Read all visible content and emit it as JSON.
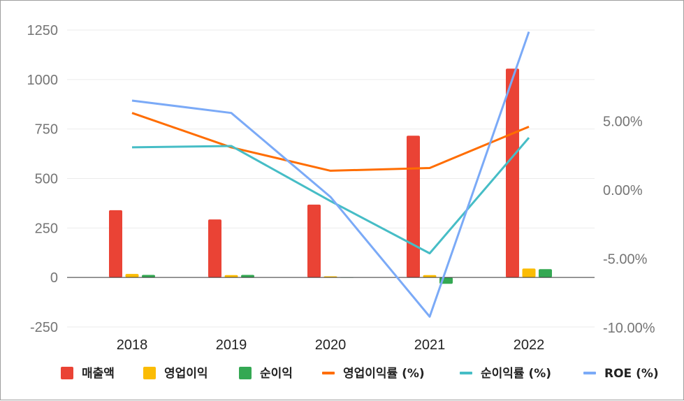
{
  "chart_data": {
    "type": "bar",
    "categories": [
      "2018",
      "2019",
      "2020",
      "2021",
      "2022"
    ],
    "left_axis": {
      "min": -250,
      "max": 1250,
      "ticks": [
        {
          "value": -250,
          "label": "-250"
        },
        {
          "value": 0,
          "label": "0"
        },
        {
          "value": 250,
          "label": "250"
        },
        {
          "value": 500,
          "label": "500"
        },
        {
          "value": 750,
          "label": "750"
        },
        {
          "value": 1000,
          "label": "1000"
        },
        {
          "value": 1250,
          "label": "1250"
        }
      ]
    },
    "right_axis": {
      "ticks": [
        {
          "value": 5,
          "label": "5.00%"
        },
        {
          "value": 0,
          "label": "0.00%"
        },
        {
          "value": -5,
          "label": "-5.00%"
        },
        {
          "value": -10,
          "label": "-10.00%"
        }
      ]
    },
    "bar_series": [
      {
        "name": "매출액",
        "color": "#ea4335",
        "values": [
          340,
          293,
          368,
          716,
          1055
        ]
      },
      {
        "name": "영업이익",
        "color": "#fbbc04",
        "values": [
          18,
          12,
          6,
          12,
          45
        ]
      },
      {
        "name": "순이익",
        "color": "#34a853",
        "values": [
          13,
          13,
          0,
          -32,
          42
        ]
      }
    ],
    "line_series": [
      {
        "name": "영업이익률 (%)",
        "color": "#ff6d01",
        "values": [
          5.6,
          3.1,
          1.4,
          1.6,
          4.6
        ]
      },
      {
        "name": "순이익률 (%)",
        "color": "#46bdc6",
        "values": [
          3.1,
          3.2,
          -0.8,
          -4.6,
          3.8
        ]
      },
      {
        "name": "ROE (%)",
        "color": "#7baaf7",
        "values": [
          6.5,
          5.6,
          -0.5,
          -9.2,
          11.5
        ]
      }
    ],
    "grid": true,
    "legend_position": "bottom"
  }
}
